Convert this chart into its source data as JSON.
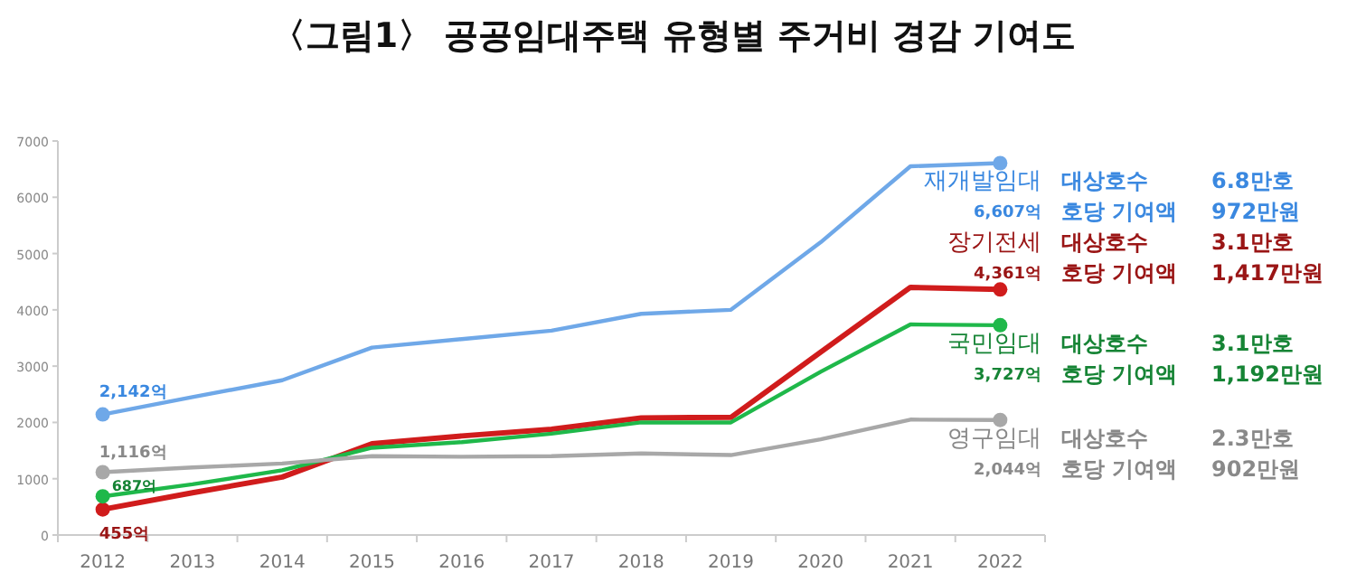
{
  "chart_data": {
    "type": "line",
    "title": "〈그림1〉 공공임대주택 유형별 주거비 경감 기여도",
    "categories": [
      "2012",
      "2013",
      "2014",
      "2015",
      "2016",
      "2017",
      "2018",
      "2019",
      "2020",
      "2021",
      "2022"
    ],
    "ylim": [
      0,
      7000
    ],
    "yticks": [
      0,
      1000,
      2000,
      3000,
      4000,
      5000,
      6000,
      7000
    ],
    "grid": false,
    "marker": "none",
    "legend": false,
    "series": [
      {
        "name": "재개발임대",
        "color": "#6fa8e8",
        "values": [
          2142,
          2450,
          2750,
          3330,
          3480,
          3630,
          3930,
          4000,
          5200,
          6550,
          6607
        ],
        "value_labels": [
          "2,142억",
          null,
          null,
          null,
          null,
          null,
          null,
          null,
          null,
          null,
          "6,607억"
        ]
      },
      {
        "name": "장기전세",
        "color": "#d01c1c",
        "values": [
          455,
          750,
          1030,
          1620,
          1760,
          1880,
          2080,
          2090,
          3250,
          4400,
          4361
        ],
        "value_labels": [
          "455억",
          null,
          null,
          null,
          null,
          null,
          null,
          null,
          null,
          null,
          "4,361억"
        ]
      },
      {
        "name": "국민임대",
        "color": "#1fb84a",
        "values": [
          687,
          900,
          1150,
          1550,
          1650,
          1800,
          2000,
          2000,
          2900,
          3740,
          3727
        ],
        "value_labels": [
          "687억",
          null,
          null,
          null,
          null,
          null,
          null,
          null,
          null,
          null,
          "3,727억"
        ]
      },
      {
        "name": "영구임대",
        "color": "#a8a8a8",
        "values": [
          1116,
          1200,
          1270,
          1400,
          1390,
          1400,
          1450,
          1420,
          1700,
          2050,
          2044
        ],
        "value_labels": [
          "1,116억",
          null,
          null,
          null,
          null,
          null,
          null,
          null,
          null,
          null,
          "2,044억"
        ]
      },
      {
        "type": "scatter",
        "marker": "circle",
        "color": "#6fa8e8",
        "values": [
          2142,
          null,
          null,
          null,
          null,
          null,
          null,
          null,
          null,
          null,
          6607
        ]
      },
      {
        "type": "scatter",
        "marker": "circle",
        "color": "#d01c1c",
        "values": [
          455,
          null,
          null,
          null,
          null,
          null,
          null,
          null,
          null,
          null,
          4361
        ]
      },
      {
        "type": "scatter",
        "marker": "circle",
        "color": "#1fb84a",
        "values": [
          687,
          null,
          null,
          null,
          null,
          null,
          null,
          null,
          null,
          null,
          3727
        ]
      },
      {
        "type": "scatter",
        "marker": "circle",
        "color": "#a8a8a8",
        "values": [
          1116,
          null,
          null,
          null,
          null,
          null,
          null,
          null,
          null,
          null,
          2044
        ]
      }
    ],
    "annotations": [
      "대상호수",
      "6.8만호",
      "호당 기여액",
      "972만원",
      "대상호수",
      "3.1만호",
      "호당 기여액",
      "1,417만원",
      "대상호수",
      "3.1만호",
      "호당 기여액",
      "1,192만원",
      "대상호수",
      "2.3만호",
      "호당 기여액",
      "902만원"
    ]
  }
}
